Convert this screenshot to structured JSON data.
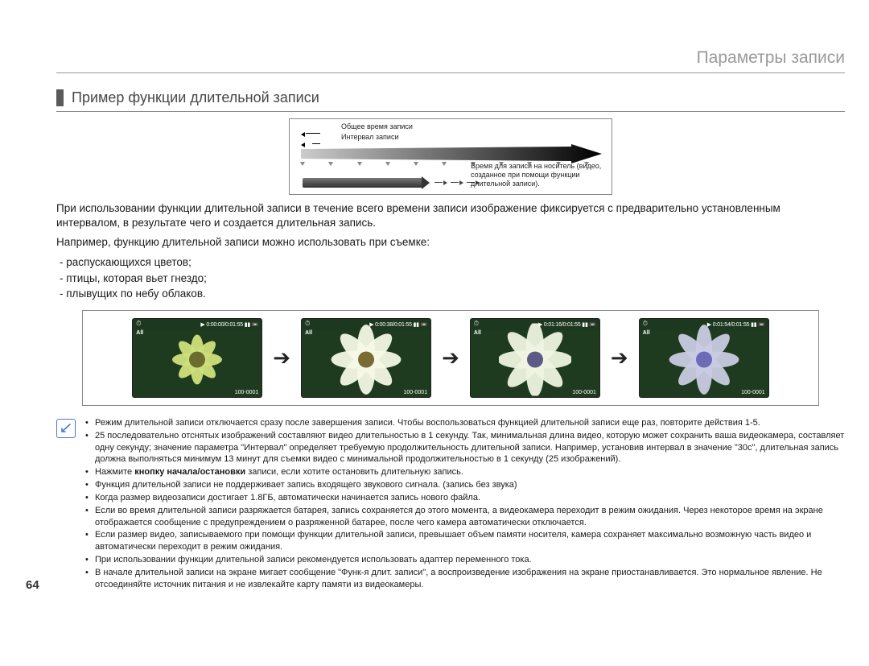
{
  "chapter_title": "Параметры записи",
  "section_title": "Пример функции длительной записи",
  "diagram": {
    "legend_total": "Общее время записи",
    "legend_interval": "Интервал записи",
    "legend_result": "Время для записи на носитель (видео, созданное при помощи функции длительной записи).",
    "gradient_start": "#cccccc",
    "gradient_end": "#000000",
    "tick_count": 11
  },
  "explainer": {
    "para": "При использовании функции длительной записи в течение всего времени записи изображение фиксируется с предварительно установленным интервалом, в результате чего и создается длительная запись.",
    "intro": "Например, функцию длительной записи можно использовать при съемке:",
    "items": [
      "распускающихся цветов;",
      "птицы, которая вьет гнездо;",
      "плывущих по небу облаков."
    ]
  },
  "thumbs": [
    {
      "time": "0:00:00/0:01:55",
      "file": "100-0001",
      "petals": "#cfe07a",
      "center": "#6c6c2e",
      "petal_w": 8,
      "petal_h": 20
    },
    {
      "time": "0:00:38/0:01:55",
      "file": "100-0001",
      "petals": "#f4f8e6",
      "center": "#7a6a33",
      "petal_w": 11,
      "petal_h": 28
    },
    {
      "time": "0:01:16/0:01:55",
      "file": "100-0001",
      "petals": "#eef4e2",
      "center": "#5e5a86",
      "petal_w": 11,
      "petal_h": 30
    },
    {
      "time": "0:01:54/0:01:55",
      "file": "100-0001",
      "petals": "#c8cbe2",
      "center": "#6b6bb8",
      "petal_w": 10,
      "petal_h": 28
    }
  ],
  "thumb_label_all": "All",
  "chevron": "➔",
  "notes": [
    "Режим длительной записи отключается сразу после завершения записи. Чтобы воспользоваться функцией длительной записи еще раз, повторите действия 1-5.",
    "25 последовательно отснятых изображений составляют видео длительностью в 1 секунду. Так, минимальная длина видео, которую может сохранить ваша видеокамера, составляет одну секунду; значение параметра \"Интервал\" определяет требуемую продолжительность длительной записи. Например, установив интервал в значение \"30с\", длительная запись должна выполняться минимум 13 минут для съемки видео с минимальной продолжительностью в 1 секунду (25 изображений).",
    "Нажмите <b>кнопку начала/остановки</b> записи, если хотите остановить длительную запись.",
    "Функция длительной записи не поддерживает запись входящего звукового сигнала. (запись без звука)",
    "Когда размер видеозаписи достигает 1.8ГБ, автоматически начинается запись нового файла.",
    "Если во время длительной записи разряжается батарея, запись сохраняется до этого момента, а видеокамера переходит в режим ожидания. Через некоторое время на экране отображается сообщение с предупреждением о разряженной батарее, после чего камера автоматически отключается.",
    "Если размер видео, записываемого при помощи функции длительной записи, превышает объем памяти носителя, камера сохраняет максимально возможную часть видео и автоматически переходит в режим ожидания.",
    "При использовании функции длительной записи рекомендуется использовать адаптер переменного тока.",
    "В начале длительной записи на экране мигает сообщение \"Функ-я длит. записи\", а воспроизведение изображения на экране приостанавливается. Это нормальное явление. Не отсоединяйте источник питания и не извлекайте карту памяти из видеокамеры."
  ],
  "page_number": "64",
  "colors": {
    "chapter_text": "#9a9a9a",
    "section_bar": "#5a5a5a",
    "rule": "#888888",
    "note_icon": "#4a78c8"
  }
}
